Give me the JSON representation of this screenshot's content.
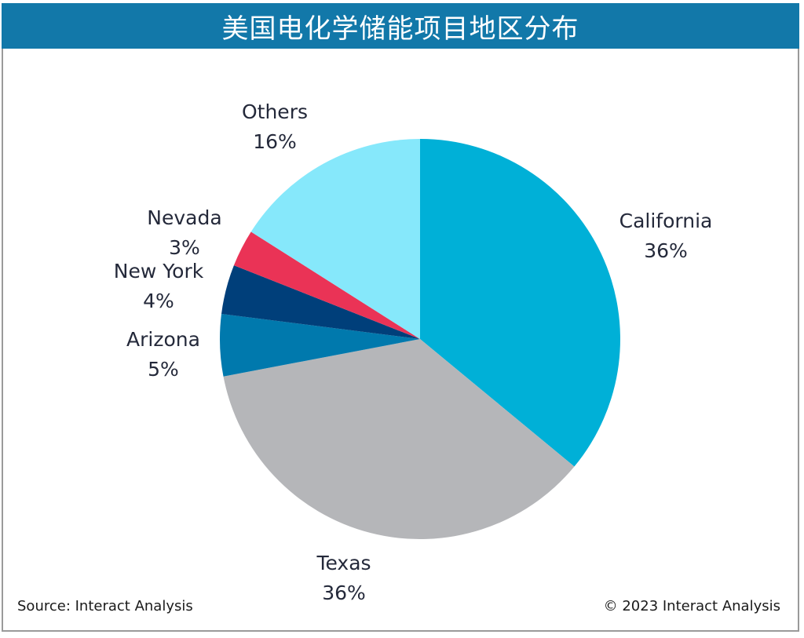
{
  "header": {
    "title": "美国电化学储能项目地区分布"
  },
  "footer": {
    "source": "Source: Interact Analysis",
    "copyright": "© 2023 Interact Analysis"
  },
  "chart_data": {
    "type": "pie",
    "title": "美国电化学储能项目地区分布",
    "start": "12 o'clock",
    "direction": "clockwise",
    "slices": [
      {
        "name": "California",
        "value": 36,
        "label": "36%",
        "color": "#00b0d7"
      },
      {
        "name": "Texas",
        "value": 36,
        "label": "36%",
        "color": "#b5b6b9"
      },
      {
        "name": "Arizona",
        "value": 5,
        "label": "5%",
        "color": "#0079ad"
      },
      {
        "name": "New York",
        "value": 4,
        "label": "4%",
        "color": "#003f7a"
      },
      {
        "name": "Nevada",
        "value": 3,
        "label": "3%",
        "color": "#ea3356"
      },
      {
        "name": "Others",
        "value": 16,
        "label": "16%",
        "color": "#86e8fb"
      }
    ]
  }
}
